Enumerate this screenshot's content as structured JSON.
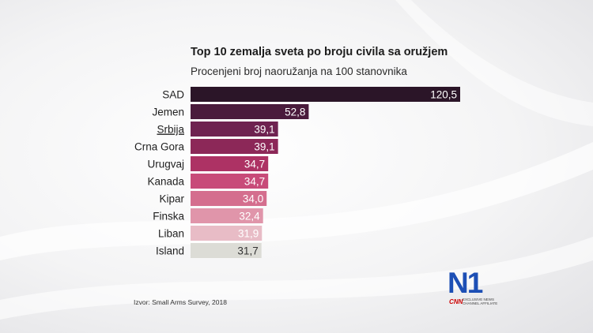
{
  "chart_data": {
    "type": "bar",
    "orientation": "horizontal",
    "title": "Top 10 zemalja sveta po broju civila sa oružjem",
    "subtitle": "Procenjeni broj naoružanja na 100 stanovnika",
    "categories": [
      "SAD",
      "Jemen",
      "Srbija",
      "Crna Gora",
      "Urugvaj",
      "Kanada",
      "Kipar",
      "Finska",
      "Liban",
      "Island"
    ],
    "values": [
      120.5,
      52.8,
      39.1,
      39.1,
      34.7,
      34.7,
      34.0,
      32.4,
      31.9,
      31.7
    ],
    "value_labels": [
      "120,5",
      "52,8",
      "39,1",
      "39,1",
      "34,7",
      "34,7",
      "34,0",
      "32,4",
      "31,9",
      "31,7"
    ],
    "bar_colors": [
      "#2b1528",
      "#4a1b3c",
      "#6e2250",
      "#8c2858",
      "#ad3264",
      "#c84b79",
      "#d46e8e",
      "#e095aa",
      "#e8bcc6",
      "#dcdcd6"
    ],
    "underlined_category": "Srbija",
    "xlim": [
      0,
      120.5
    ]
  },
  "source": "Izvor: Small Arms Survey, 2018",
  "logo": {
    "text": "N1",
    "partner": "CNN",
    "partner_note": "EXCLUSIVE NEWS CHANNEL AFFILIATE",
    "brand_color": "#1d4fb5",
    "partner_color": "#cc0000"
  }
}
